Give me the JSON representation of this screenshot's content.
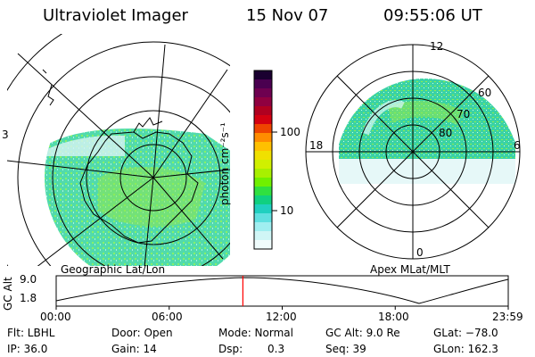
{
  "header": {
    "instrument": "Ultraviolet Imager",
    "date": "15 Nov 07",
    "time": "09:55:06 UT"
  },
  "left_map": {
    "caption": "Geographic Lat/Lon",
    "edge_mark": "3"
  },
  "right_map": {
    "caption": "Apex MLat/MLT",
    "mlt_labels": {
      "top": "12",
      "left": "18",
      "right": "6",
      "bottom": "0"
    },
    "lat_labels": [
      "60",
      "70",
      "80"
    ]
  },
  "colorbar": {
    "unit_label": "photon cm⁻²s⁻¹",
    "ticks": [
      "100",
      "10"
    ],
    "colors": [
      "#1a0030",
      "#4a0050",
      "#6e0050",
      "#900040",
      "#b00020",
      "#d40010",
      "#ee4400",
      "#ff8c00",
      "#ffc000",
      "#f0e000",
      "#d0f000",
      "#a8f000",
      "#70f000",
      "#30e040",
      "#10d080",
      "#20d0c0",
      "#60e0e0",
      "#a0eef0",
      "#d0f6f6",
      "#f0fcfc"
    ]
  },
  "timeline": {
    "axis_label": "GC Alt",
    "y_ticks": [
      "9.0",
      "1.8"
    ],
    "x_ticks": [
      "00:00",
      "06:00",
      "12:00",
      "18:00",
      "23:59"
    ],
    "cursor_fraction": 0.413
  },
  "info": {
    "flt": "Flt: LBHL",
    "ip": "IP: 36.0",
    "door": "Door: Open",
    "gain": "Gain: 14",
    "mode": "Mode: Normal",
    "dsp_label": "Dsp:",
    "dsp_value": "0.3",
    "gc_alt": "GC Alt: 9.0 Re",
    "seq": "Seq: 39",
    "glat": "GLat: −78.0",
    "glon": "GLon: 162.3"
  }
}
